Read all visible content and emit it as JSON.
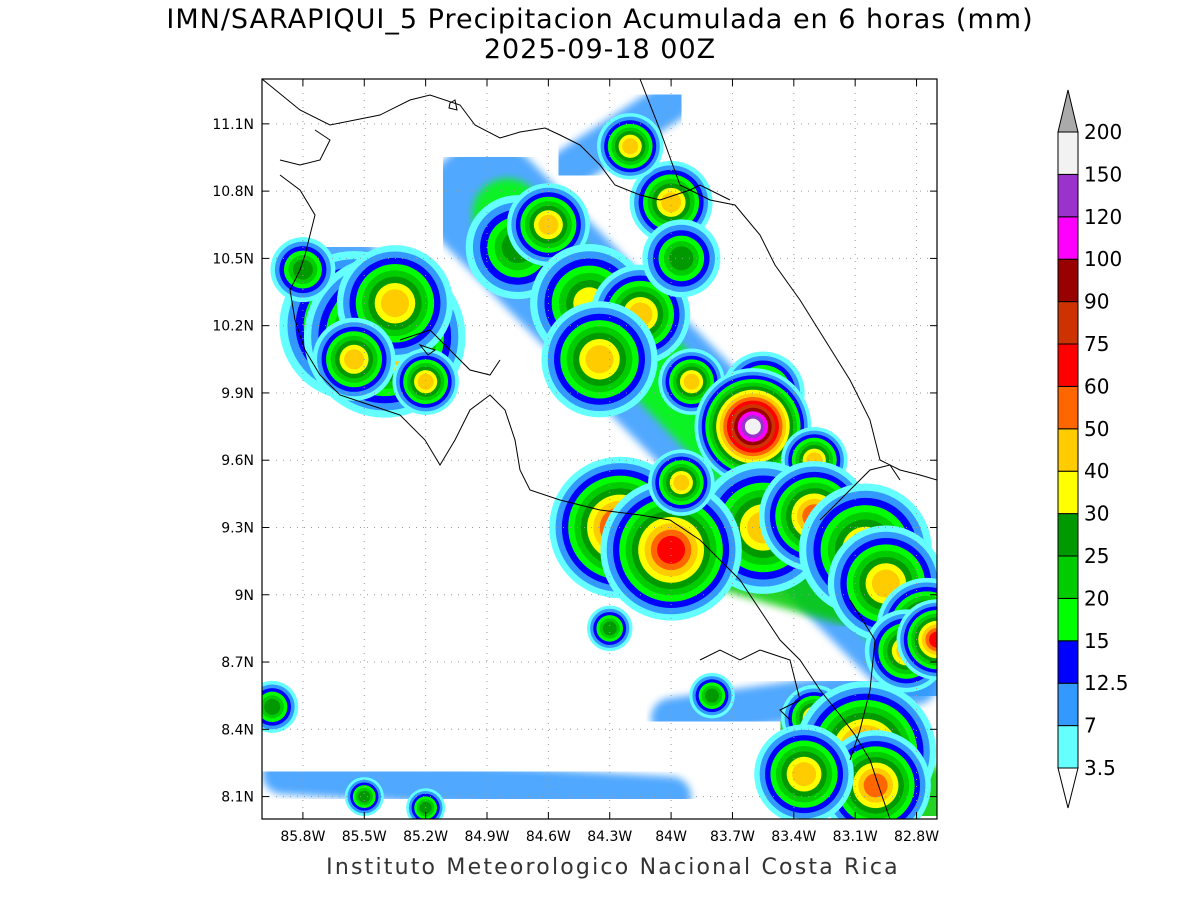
{
  "title_line1": "IMN/SARAPIQUI_5 Precipitacion Acumulada en 6 horas (mm)",
  "title_line2": "2025-09-18 00Z",
  "footer": "Instituto Meteorologico Nacional Costa Rica",
  "map": {
    "lon_ticks": [
      "85.8W",
      "85.5W",
      "85.2W",
      "84.9W",
      "84.6W",
      "84.3W",
      "84W",
      "83.7W",
      "83.4W",
      "83.1W",
      "82.8W"
    ],
    "lat_ticks": [
      "11.1N",
      "10.8N",
      "10.5N",
      "10.2N",
      "9.9N",
      "9.6N",
      "9.3N",
      "9N",
      "8.7N",
      "8.4N",
      "8.1N"
    ],
    "lon_range": [
      -86.0,
      -82.7
    ],
    "lat_range": [
      8.0,
      11.3
    ],
    "grid": true
  },
  "colorbar": {
    "levels": [
      "3.5",
      "7",
      "12.5",
      "15",
      "20",
      "25",
      "30",
      "40",
      "50",
      "60",
      "75",
      "90",
      "100",
      "120",
      "150",
      "200"
    ],
    "colors": [
      "#ffffff",
      "#66ffff",
      "#3399ff",
      "#0000ff",
      "#00ff00",
      "#00cc00",
      "#009900",
      "#ffff00",
      "#ffcc00",
      "#ff6600",
      "#ff0000",
      "#cc3300",
      "#990000",
      "#ff00ff",
      "#9933cc",
      "#f2f2f2",
      "#aaaaaa"
    ]
  },
  "precip_cells": [
    {
      "lon": -85.55,
      "lat": 10.2,
      "r": 18,
      "mm": 40
    },
    {
      "lon": -85.4,
      "lat": 10.15,
      "r": 16,
      "mm": 60
    },
    {
      "lon": -85.35,
      "lat": 10.3,
      "r": 14,
      "mm": 40
    },
    {
      "lon": -85.8,
      "lat": 10.45,
      "r": 10,
      "mm": 25
    },
    {
      "lon": -85.55,
      "lat": 10.05,
      "r": 10,
      "mm": 40
    },
    {
      "lon": -85.2,
      "lat": 9.95,
      "r": 8,
      "mm": 40
    },
    {
      "lon": -84.75,
      "lat": 10.55,
      "r": 16,
      "mm": 25
    },
    {
      "lon": -84.6,
      "lat": 10.65,
      "r": 10,
      "mm": 40
    },
    {
      "lon": -84.4,
      "lat": 10.3,
      "r": 16,
      "mm": 30
    },
    {
      "lon": -84.15,
      "lat": 10.25,
      "r": 12,
      "mm": 40
    },
    {
      "lon": -84.35,
      "lat": 10.05,
      "r": 14,
      "mm": 40
    },
    {
      "lon": -84.0,
      "lat": 10.75,
      "r": 10,
      "mm": 40
    },
    {
      "lon": -84.2,
      "lat": 11.0,
      "r": 8,
      "mm": 40
    },
    {
      "lon": -83.95,
      "lat": 10.5,
      "r": 12,
      "mm": 25
    },
    {
      "lon": -83.9,
      "lat": 9.95,
      "r": 8,
      "mm": 40
    },
    {
      "lon": -83.55,
      "lat": 9.9,
      "r": 10,
      "mm": 40
    },
    {
      "lon": -83.6,
      "lat": 9.75,
      "r": 8,
      "mm": 150
    },
    {
      "lon": -83.3,
      "lat": 9.6,
      "r": 8,
      "mm": 40
    },
    {
      "lon": -83.55,
      "lat": 9.3,
      "r": 16,
      "mm": 40
    },
    {
      "lon": -83.3,
      "lat": 9.35,
      "r": 12,
      "mm": 50
    },
    {
      "lon": -83.05,
      "lat": 9.2,
      "r": 16,
      "mm": 40
    },
    {
      "lon": -82.95,
      "lat": 9.05,
      "r": 14,
      "mm": 40
    },
    {
      "lon": -82.75,
      "lat": 8.85,
      "r": 10,
      "mm": 60
    },
    {
      "lon": -82.85,
      "lat": 8.75,
      "r": 10,
      "mm": 40
    },
    {
      "lon": -82.7,
      "lat": 8.8,
      "r": 8,
      "mm": 60
    },
    {
      "lon": -84.25,
      "lat": 9.3,
      "r": 14,
      "mm": 60
    },
    {
      "lon": -84.0,
      "lat": 9.2,
      "r": 14,
      "mm": 60
    },
    {
      "lon": -83.95,
      "lat": 9.5,
      "r": 8,
      "mm": 40
    },
    {
      "lon": -83.3,
      "lat": 8.45,
      "r": 8,
      "mm": 40
    },
    {
      "lon": -83.05,
      "lat": 8.3,
      "r": 14,
      "mm": 60
    },
    {
      "lon": -83.0,
      "lat": 8.15,
      "r": 12,
      "mm": 50
    },
    {
      "lon": -83.35,
      "lat": 8.2,
      "r": 12,
      "mm": 40
    },
    {
      "lon": -85.95,
      "lat": 8.5,
      "r": 8,
      "mm": 25
    },
    {
      "lon": -85.5,
      "lat": 8.1,
      "r": 6,
      "mm": 25
    },
    {
      "lon": -85.2,
      "lat": 8.05,
      "r": 6,
      "mm": 25
    },
    {
      "lon": -84.3,
      "lat": 8.85,
      "r": 7,
      "mm": 25
    },
    {
      "lon": -83.8,
      "lat": 8.55,
      "r": 7,
      "mm": 25
    }
  ],
  "precip_bands": [
    {
      "lon1": -84.9,
      "lat1": 10.75,
      "lon2": -82.75,
      "lat2": 8.75,
      "width": 120,
      "mm": 7
    },
    {
      "lon1": -84.8,
      "lat1": 10.7,
      "lon2": -82.8,
      "lat2": 8.8,
      "width": 70,
      "mm": 15
    },
    {
      "lon1": -84.3,
      "lat1": 9.3,
      "lon2": -82.75,
      "lat2": 8.9,
      "width": 60,
      "mm": 20
    },
    {
      "lon1": -83.6,
      "lat1": 9.45,
      "lon2": -82.8,
      "lat2": 8.85,
      "width": 60,
      "mm": 25
    },
    {
      "lon1": -85.9,
      "lat1": 8.2,
      "lon2": -84.0,
      "lat2": 8.1,
      "width": 40,
      "mm": 7
    },
    {
      "lon1": -84.0,
      "lat1": 8.45,
      "lon2": -82.8,
      "lat2": 8.6,
      "width": 40,
      "mm": 7
    },
    {
      "lon1": -85.7,
      "lat1": 10.5,
      "lon2": -85.2,
      "lat2": 10.0,
      "width": 90,
      "mm": 7
    },
    {
      "lon1": -85.6,
      "lat1": 10.35,
      "lon2": -85.3,
      "lat2": 10.05,
      "width": 50,
      "mm": 20
    },
    {
      "lon1": -84.5,
      "lat1": 10.9,
      "lon2": -84.0,
      "lat2": 11.2,
      "width": 40,
      "mm": 7
    },
    {
      "lon1": -83.4,
      "lat1": 8.4,
      "lon2": -82.75,
      "lat2": 8.05,
      "width": 80,
      "mm": 20
    },
    {
      "lon1": -83.3,
      "lat1": 8.3,
      "lon2": -82.8,
      "lat2": 8.1,
      "width": 50,
      "mm": 30
    }
  ]
}
